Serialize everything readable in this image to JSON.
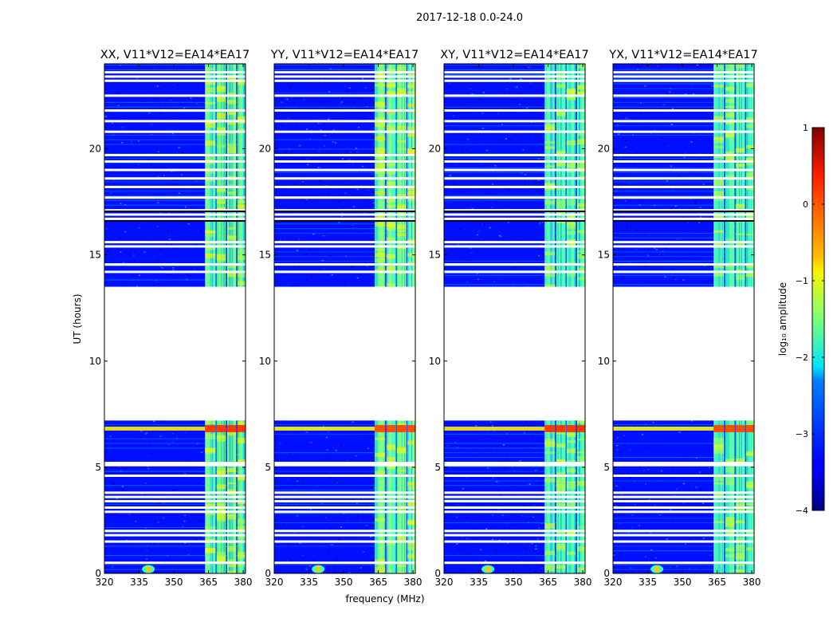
{
  "figure_title": "2017-12-18 0.0-24.0",
  "chart_data": {
    "type": "heatmap",
    "suptitle": "2017-12-18 0.0-24.0",
    "xlabel": "frequency (MHz)",
    "ylabel": "UT (hours)",
    "xlim": [
      320,
      381
    ],
    "ylim": [
      0,
      24
    ],
    "xticks": [
      320,
      335,
      350,
      365,
      380
    ],
    "yticks": [
      0,
      5,
      10,
      15,
      20
    ],
    "colormap": "jet",
    "colors": {
      "low": "#00007f",
      "mid": "#7fff7f",
      "high": "#7f0000",
      "gap": "#ffffff"
    },
    "colorbar": {
      "label": "log₁₀ amplitude",
      "range": [
        -4,
        1
      ],
      "ticks": [
        -4,
        -3,
        -2,
        -1,
        0,
        1
      ]
    },
    "no_data_ut": [
      [
        7.2,
        13.5
      ]
    ],
    "thin_gaps_ut": [
      0.5,
      1.5,
      1.8,
      2.0,
      2.9,
      3.1,
      3.4,
      3.6,
      3.8,
      4.6,
      5.1,
      5.2,
      14.2,
      14.55,
      15.4,
      15.6,
      16.7,
      16.9,
      17.1,
      17.7,
      18.2,
      18.6,
      19.0,
      19.4,
      19.7,
      20.8,
      21.3,
      21.8,
      22.5,
      23.2,
      23.4,
      23.6
    ],
    "rfi_bands_mhz": [
      [
        363.5,
        368.0
      ],
      [
        368.5,
        372.5
      ],
      [
        373.0,
        377.0
      ],
      [
        377.5,
        381.0
      ]
    ],
    "panels": [
      {
        "title": "XX, V11*V12=EA14*EA17",
        "band_level": -1.6,
        "background_level": -3.3,
        "flare_ut": 6.8,
        "flare_level": 0.1,
        "source_mhz": 339
      },
      {
        "title": "YY, V11*V12=EA14*EA17",
        "band_level": -1.5,
        "background_level": -3.3,
        "flare_ut": 6.8,
        "flare_level": 0.0,
        "source_mhz": 339
      },
      {
        "title": "XY, V11*V12=EA14*EA17",
        "band_level": -1.7,
        "background_level": -3.3,
        "flare_ut": 6.8,
        "flare_level": 0.1,
        "source_mhz": 339
      },
      {
        "title": "YX, V11*V12=EA14*EA17",
        "band_level": -1.7,
        "background_level": -3.3,
        "flare_ut": 6.8,
        "flare_level": 0.0,
        "source_mhz": 339
      }
    ]
  }
}
